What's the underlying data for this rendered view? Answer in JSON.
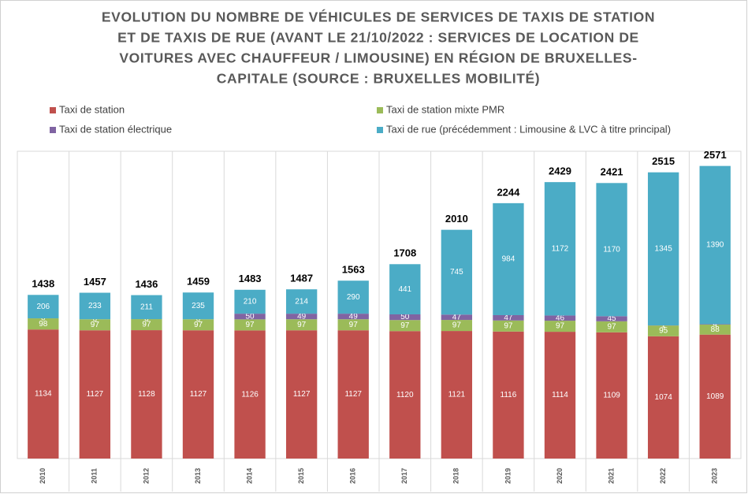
{
  "chart_data": {
    "type": "stacked_bar",
    "title_lines": [
      "EVOLUTION DU NOMBRE DE VÉHICULES DE SERVICES DE TAXIS DE STATION",
      "ET DE TAXIS DE RUE (AVANT LE 21/10/2022 : SERVICES DE LOCATION DE",
      "VOITURES AVEC CHAUFFEUR / LIMOUSINE) EN RÉGION DE BRUXELLES-",
      "CAPITALE (SOURCE : BRUXELLES MOBILITÉ)"
    ],
    "categories": [
      "2010",
      "2011",
      "2012",
      "2013",
      "2014",
      "2015",
      "2016",
      "2017",
      "2018",
      "2019",
      "2020",
      "2021",
      "2022",
      "2023"
    ],
    "series": [
      {
        "name": "Taxi de station",
        "color": "#c0504d",
        "values": [
          1134,
          1127,
          1128,
          1127,
          1126,
          1127,
          1127,
          1120,
          1121,
          1116,
          1114,
          1109,
          1074,
          1089
        ]
      },
      {
        "name": "Taxi de station mixte PMR",
        "color": "#9bbb59",
        "values": [
          98,
          97,
          97,
          97,
          97,
          97,
          97,
          97,
          97,
          97,
          97,
          97,
          95,
          88
        ]
      },
      {
        "name": "Taxi de station électrique",
        "color": "#8064a2",
        "values": [
          0,
          0,
          0,
          0,
          50,
          49,
          49,
          50,
          47,
          47,
          46,
          45,
          1,
          4
        ]
      },
      {
        "name": "Taxi de rue (précédemment : Limousine & LVC à titre principal)",
        "color": "#4bacc6",
        "values": [
          206,
          233,
          211,
          235,
          210,
          214,
          290,
          441,
          745,
          984,
          1172,
          1170,
          1345,
          1390
        ]
      }
    ],
    "totals": [
      1438,
      1457,
      1436,
      1459,
      1483,
      1487,
      1563,
      1708,
      2010,
      2244,
      2429,
      2421,
      2515,
      2571
    ],
    "ylim": [
      0,
      2700
    ]
  }
}
